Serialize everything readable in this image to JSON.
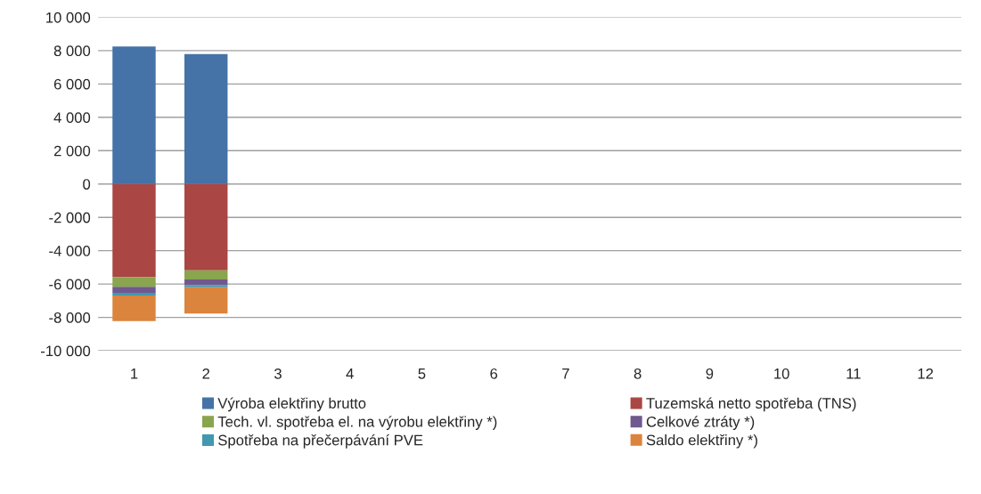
{
  "chart_data": {
    "type": "bar",
    "stacked": true,
    "categories": [
      "1",
      "2",
      "3",
      "4",
      "5",
      "6",
      "7",
      "8",
      "9",
      "10",
      "11",
      "12"
    ],
    "series": [
      {
        "name": "Výroba elektřiny brutto",
        "color": "#4572a7",
        "values": [
          8250,
          7800,
          null,
          null,
          null,
          null,
          null,
          null,
          null,
          null,
          null,
          null
        ]
      },
      {
        "name": "Tuzemská netto spotřeba (TNS)",
        "color": "#aa4643",
        "values": [
          -5580,
          -5180,
          null,
          null,
          null,
          null,
          null,
          null,
          null,
          null,
          null,
          null
        ]
      },
      {
        "name": "Tech. vl. spotřeba el. na výrobu elektřiny *)",
        "color": "#89a54e",
        "values": [
          -590,
          -540,
          null,
          null,
          null,
          null,
          null,
          null,
          null,
          null,
          null,
          null
        ]
      },
      {
        "name": "Celkové ztráty *)",
        "color": "#71588f",
        "values": [
          -360,
          -340,
          null,
          null,
          null,
          null,
          null,
          null,
          null,
          null,
          null,
          null
        ]
      },
      {
        "name": "Spotřeba na přečerpávání PVE",
        "color": "#4198af",
        "values": [
          -160,
          -140,
          null,
          null,
          null,
          null,
          null,
          null,
          null,
          null,
          null,
          null
        ]
      },
      {
        "name": "Saldo elektřiny *)",
        "color": "#db843d",
        "values": [
          -1530,
          -1570,
          null,
          null,
          null,
          null,
          null,
          null,
          null,
          null,
          null,
          null
        ]
      }
    ],
    "ylim": [
      -10000,
      10000
    ],
    "yticks": [
      {
        "value": -10000,
        "label": "-10 000"
      },
      {
        "value": -8000,
        "label": "-8 000"
      },
      {
        "value": -6000,
        "label": "-6 000"
      },
      {
        "value": -4000,
        "label": "-4 000"
      },
      {
        "value": -2000,
        "label": "-2 000"
      },
      0,
      {
        "value": 2000,
        "label": "2 000"
      },
      {
        "value": 4000,
        "label": "4 000"
      },
      {
        "value": 6000,
        "label": "6 000"
      },
      {
        "value": 8000,
        "label": "8 000"
      },
      {
        "value": 10000,
        "label": "10 000"
      }
    ],
    "grid": "y",
    "legend": "bottom"
  }
}
